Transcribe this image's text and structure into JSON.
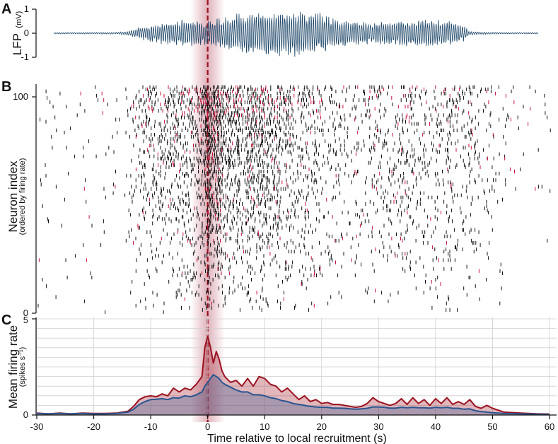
{
  "panels": {
    "a": {
      "letter": "A",
      "ylabel": "LFP",
      "yunit": "(mV)",
      "yticks": [
        "1",
        "0",
        "-1"
      ]
    },
    "b": {
      "letter": "B",
      "ylabel": "Neuron index",
      "ysub": "(ordered by firing rate)",
      "yticks": [
        "100",
        "0"
      ]
    },
    "c": {
      "letter": "C",
      "ylabel": "Mean firing rate",
      "ysub": "(spikes s⁻¹)",
      "yticks": [
        "5",
        "0"
      ]
    }
  },
  "xlabel": "Time relative to local recruitment (s)",
  "colors": {
    "lfp": "#1d4668",
    "red": "#9b1220",
    "blue": "#2a5590",
    "highlight": "#b5485f",
    "raster_black": "#111111",
    "raster_red": "#c8103a"
  },
  "chart_data": [
    {
      "type": "line",
      "title": "",
      "xlabel": "",
      "ylabel": "LFP (mV)",
      "xlim": [
        -30,
        60
      ],
      "ylim": [
        -1,
        1
      ],
      "yticks": [
        -1,
        0,
        1
      ],
      "recruitment_time": 0,
      "highlight_window": [
        -3,
        3
      ],
      "envelope": {
        "x": [
          -30,
          -23,
          -16,
          -14,
          -12,
          -10,
          -8,
          -5,
          -3,
          0,
          2,
          4,
          6,
          8,
          10,
          12,
          14,
          16,
          18,
          20,
          22,
          24,
          26,
          28,
          30,
          33,
          35,
          37,
          40,
          42,
          44,
          45,
          46,
          48,
          50,
          56,
          58
        ],
        "amplitude": [
          0.03,
          0.03,
          0.04,
          0.09,
          0.22,
          0.38,
          0.45,
          0.5,
          0.55,
          0.5,
          0.6,
          0.7,
          0.8,
          0.85,
          0.9,
          0.9,
          0.92,
          0.88,
          0.85,
          0.8,
          0.6,
          0.55,
          0.5,
          0.45,
          0.45,
          0.5,
          0.5,
          0.55,
          0.55,
          0.5,
          0.42,
          0.3,
          0.08,
          0.05,
          0.04,
          0.03,
          0.03
        ]
      }
    },
    {
      "type": "scatter",
      "title": "",
      "xlabel": "",
      "ylabel": "Neuron index (ordered by firing rate)",
      "xlim": [
        -30,
        60
      ],
      "ylim": [
        0,
        105
      ],
      "yticks": [
        0,
        100
      ],
      "n_neurons": 105,
      "marker": "vertical tick (spike raster)",
      "highlight_window": [
        -3,
        3
      ]
    },
    {
      "type": "area",
      "title": "",
      "xlabel": "Time relative to local recruitment (s)",
      "ylabel": "Mean firing rate (spikes s⁻¹)",
      "xlim": [
        -30,
        60
      ],
      "ylim": [
        0,
        5
      ],
      "xticks": [
        -30,
        -20,
        -10,
        0,
        10,
        20,
        30,
        40,
        50,
        60
      ],
      "yticks": [
        0,
        5
      ],
      "grid": true,
      "highlight_window": [
        -3,
        3
      ],
      "x": [
        -30,
        -28,
        -26,
        -24,
        -22,
        -20,
        -18,
        -16,
        -14,
        -13,
        -12,
        -11,
        -10,
        -9,
        -8,
        -7,
        -6,
        -5,
        -4,
        -3,
        -2,
        -1,
        -0.5,
        0,
        0.5,
        1,
        1.5,
        2,
        2.5,
        3,
        4,
        5,
        6,
        7,
        8,
        9,
        10,
        11,
        12,
        13,
        14,
        15,
        16,
        17,
        18,
        19,
        20,
        21,
        22,
        23,
        24,
        25,
        26,
        27,
        28,
        29,
        30,
        31,
        32,
        33,
        34,
        35,
        36,
        37,
        38,
        39,
        40,
        41,
        42,
        43,
        44,
        45,
        46,
        47,
        48,
        49,
        50,
        52,
        55,
        58,
        60
      ],
      "series": [
        {
          "values": [
            0.1,
            0.06,
            0.1,
            0.06,
            0.1,
            0.08,
            0.08,
            0.1,
            0.2,
            0.45,
            0.8,
            0.95,
            1.0,
            0.95,
            1.1,
            1.0,
            1.4,
            1.2,
            1.4,
            1.3,
            1.6,
            2.0,
            3.5,
            4.1,
            3.5,
            2.7,
            3.3,
            2.9,
            2.3,
            2.0,
            1.7,
            1.8,
            1.5,
            1.9,
            1.5,
            2.0,
            1.9,
            1.6,
            1.5,
            1.2,
            1.4,
            1.1,
            0.8,
            1.0,
            0.7,
            0.8,
            0.6,
            0.65,
            0.55,
            0.55,
            0.5,
            0.45,
            0.4,
            0.45,
            0.6,
            0.9,
            0.7,
            0.6,
            0.5,
            0.6,
            0.85,
            0.55,
            0.9,
            0.6,
            0.8,
            0.5,
            0.85,
            0.6,
            0.9,
            0.55,
            0.7,
            0.55,
            0.8,
            0.45,
            0.35,
            0.5,
            0.35,
            0.15,
            0.1,
            0.06,
            0.05
          ]
        },
        {
          "values": [
            0.08,
            0.06,
            0.08,
            0.06,
            0.08,
            0.06,
            0.06,
            0.08,
            0.15,
            0.3,
            0.55,
            0.7,
            0.8,
            0.82,
            0.85,
            0.8,
            0.9,
            0.88,
            1.0,
            0.95,
            1.05,
            1.2,
            1.5,
            1.7,
            1.9,
            2.1,
            2.0,
            1.9,
            1.7,
            1.6,
            1.45,
            1.3,
            1.2,
            1.2,
            1.05,
            1.05,
            1.0,
            0.9,
            0.85,
            0.75,
            0.7,
            0.6,
            0.55,
            0.5,
            0.45,
            0.42,
            0.4,
            0.4,
            0.36,
            0.36,
            0.35,
            0.32,
            0.3,
            0.32,
            0.35,
            0.42,
            0.42,
            0.4,
            0.36,
            0.36,
            0.4,
            0.38,
            0.4,
            0.38,
            0.38,
            0.36,
            0.4,
            0.38,
            0.4,
            0.35,
            0.35,
            0.3,
            0.32,
            0.22,
            0.18,
            0.15,
            0.12,
            0.08,
            0.06,
            0.04,
            0.03
          ]
        }
      ]
    }
  ]
}
